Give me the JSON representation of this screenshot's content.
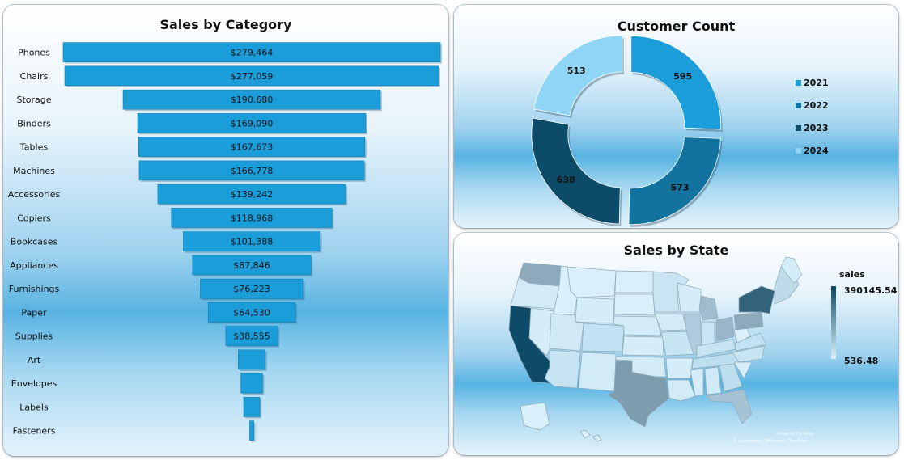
{
  "chart_data": [
    {
      "type": "bar",
      "title": "Sales by Category",
      "style": "funnel",
      "categories": [
        "Phones",
        "Chairs",
        "Storage",
        "Binders",
        "Tables",
        "Machines",
        "Accessories",
        "Copiers",
        "Bookcases",
        "Appliances",
        "Furnishings",
        "Paper",
        "Supplies",
        "Art",
        "Envelopes",
        "Labels",
        "Fasteners"
      ],
      "values": [
        279464,
        277059,
        190680,
        169090,
        167673,
        166778,
        139242,
        118968,
        101388,
        87846,
        76223,
        64530,
        38555,
        20000,
        16000,
        12000,
        3000
      ],
      "value_labels": [
        "$279,464",
        "$277,059",
        "$190,680",
        "$169,090",
        "$167,673",
        "$166,778",
        "$139,242",
        "$118,968",
        "$101,388",
        "$87,846",
        "$76,223",
        "$64,530",
        "$38,555",
        "",
        "",
        "",
        ""
      ],
      "bar_color": "#1a9dd9"
    },
    {
      "type": "pie",
      "style": "donut",
      "title": "Customer Count",
      "categories": [
        "2021",
        "2022",
        "2023",
        "2024"
      ],
      "values": [
        595,
        573,
        638,
        513
      ],
      "colors": [
        "#1a9dd9",
        "#13739f",
        "#0c4c69",
        "#8fd6f6"
      ],
      "legend_position": "right"
    },
    {
      "type": "heatmap",
      "title": "Sales by State",
      "legend_title": "sales",
      "scale_max": "390145.54",
      "scale_min": "536.48",
      "color_high": "#0c4a66",
      "color_low": "#d9f1fb",
      "credit_lines": [
        "Powered by Bing",
        "© GeoNames, Microsoft, TomTom"
      ]
    }
  ]
}
